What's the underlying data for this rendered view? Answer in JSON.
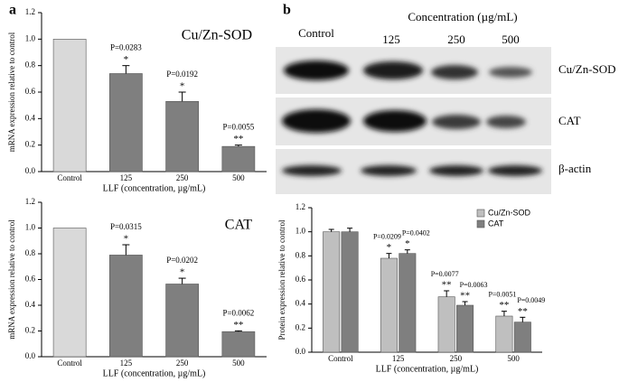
{
  "panel_labels": [
    "a",
    "b"
  ],
  "blot": {
    "header": "Concentration (µg/mL)",
    "lanes": [
      "Control",
      "125",
      "250",
      "500"
    ],
    "rows": [
      "Cu/Zn-SOD",
      "CAT",
      "β-actin"
    ]
  },
  "chart_data": [
    {
      "type": "bar",
      "title": "Cu/Zn-SOD",
      "y_label": "mRNA expression relative to control",
      "x_label": "LLF (concentration, µg/mL)",
      "categories": [
        "Control",
        "125",
        "250",
        "500"
      ],
      "values": [
        1,
        0.74,
        0.53,
        0.19
      ],
      "errors": [
        null,
        0.06,
        0.07,
        0.01
      ],
      "colors": [
        "#d9d9d9",
        "#7f7f7f",
        "#7f7f7f",
        "#7f7f7f"
      ],
      "p_labels": [
        null,
        "P=0.0283",
        "P=0.0192",
        "P=0.0055"
      ],
      "significance": [
        null,
        "*",
        "*",
        "**"
      ],
      "ylim": [
        0,
        1.2
      ],
      "yticks": [
        {
          "value": 0,
          "label": "0.0"
        },
        0.2,
        0.4,
        0.6,
        0.8,
        {
          "value": 1,
          "label": "1.0"
        },
        1.2
      ]
    },
    {
      "type": "bar",
      "title": "CAT",
      "y_label": "mRNA expression relative to control",
      "x_label": "LLF (concentration, µg/mL)",
      "categories": [
        "Control",
        "125",
        "250",
        "500"
      ],
      "values": [
        1,
        0.79,
        0.565,
        0.195
      ],
      "errors": [
        null,
        0.08,
        0.045,
        0.006
      ],
      "colors": [
        "#d9d9d9",
        "#7f7f7f",
        "#7f7f7f",
        "#7f7f7f"
      ],
      "p_labels": [
        null,
        "P=0.0315",
        "P=0.0202",
        "P=0.0062"
      ],
      "significance": [
        null,
        "*",
        "*",
        "**"
      ],
      "ylim": [
        0,
        1.2
      ],
      "yticks": [
        {
          "value": 0,
          "label": "0.0"
        },
        0.2,
        0.4,
        0.6,
        0.8,
        {
          "value": 1,
          "label": "1.0"
        },
        1.2
      ]
    },
    {
      "type": "bar",
      "y_label": "Protein expression relative to control",
      "x_label": "LLF (concentration, µg/mL)",
      "categories": [
        "Control",
        "125",
        "250",
        "500"
      ],
      "legend": "upper right",
      "series": [
        {
          "name": "Cu/Zn-SOD",
          "color": "#bfbfbf",
          "values": [
            1,
            0.78,
            0.46,
            0.3
          ],
          "errors": [
            0.02,
            0.04,
            0.05,
            0.04
          ],
          "p_labels": [
            null,
            "P=0.0209",
            "P=0.0077",
            "P=0.0051"
          ],
          "significance": [
            null,
            "*",
            "**",
            "**"
          ]
        },
        {
          "name": "CAT",
          "color": "#7f7f7f",
          "values": [
            1,
            0.82,
            0.39,
            0.25
          ],
          "errors": [
            0.03,
            0.03,
            0.03,
            0.04
          ],
          "p_labels": [
            null,
            "P=0.0402",
            "P=0.0063",
            "P=0.0049"
          ],
          "significance": [
            null,
            "*",
            "**",
            "**"
          ]
        }
      ],
      "ylim": [
        0,
        1.2
      ],
      "yticks": [
        {
          "value": 0,
          "label": "0.0"
        },
        0.2,
        0.4,
        0.6,
        0.8,
        {
          "value": 1,
          "label": "1.0"
        },
        1.2
      ]
    }
  ]
}
